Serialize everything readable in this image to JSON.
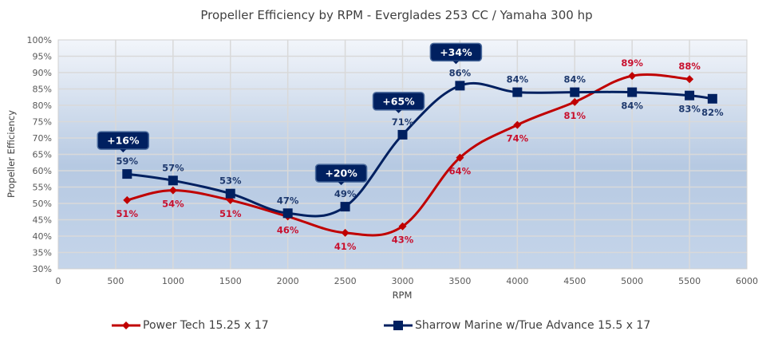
{
  "chart_data": {
    "type": "line",
    "title": "Propeller Efficiency by RPM - Everglades 253 CC / Yamaha 300 hp",
    "xlabel": "RPM",
    "ylabel": "Propeller Efficiency",
    "xlim": [
      0,
      6000
    ],
    "ylim": [
      30,
      100
    ],
    "x_ticks": [
      0,
      500,
      1000,
      1500,
      2000,
      2500,
      3000,
      3500,
      4000,
      4500,
      5000,
      5500,
      6000
    ],
    "x_tick_labels": [
      "0",
      "500",
      "1000",
      "1500",
      "2000",
      "2500",
      "3000",
      "3500",
      "4000",
      "4500",
      "5000",
      "5500",
      "6000"
    ],
    "y_ticks": [
      30,
      35,
      40,
      45,
      50,
      55,
      60,
      65,
      70,
      75,
      80,
      85,
      90,
      95,
      100
    ],
    "y_tick_labels": [
      "30%",
      "35%",
      "40%",
      "45%",
      "50%",
      "55%",
      "60%",
      "65%",
      "70%",
      "75%",
      "80%",
      "85%",
      "90%",
      "95%",
      "100%"
    ],
    "grid": true,
    "legend_position": "bottom",
    "series": [
      {
        "name": "Power Tech 15.25 x 17",
        "color": "#c00000",
        "marker": "diamond",
        "x": [
          600,
          1000,
          1500,
          2000,
          2500,
          3000,
          3500,
          4000,
          4500,
          5000,
          5500
        ],
        "values": [
          51,
          54,
          51,
          46,
          41,
          43,
          64,
          74,
          81,
          89,
          88
        ],
        "labels": [
          "51%",
          "54%",
          "51%",
          "46%",
          "41%",
          "43%",
          "64%",
          "74%",
          "81%",
          "89%",
          "88%"
        ],
        "label_pos": [
          "below",
          "below",
          "below",
          "below",
          "below",
          "below",
          "below",
          "below",
          "below",
          "above",
          "above"
        ]
      },
      {
        "name": "Sharrow Marine w/True Advance 15.5 x 17",
        "color": "#002060",
        "marker": "square",
        "x": [
          600,
          1000,
          1500,
          2000,
          2500,
          3000,
          3500,
          4000,
          4500,
          5000,
          5500,
          5700
        ],
        "values": [
          59,
          57,
          53,
          47,
          49,
          71,
          86,
          84,
          84,
          84,
          83,
          82
        ],
        "labels": [
          "59%",
          "57%",
          "53%",
          "47%",
          "49%",
          "71%",
          "86%",
          "84%",
          "84%",
          "84%",
          "83%",
          "82%"
        ],
        "label_pos": [
          "above",
          "above",
          "above",
          "above",
          "above",
          "above",
          "above",
          "above",
          "above",
          "below",
          "below",
          "below"
        ]
      }
    ],
    "annotations": [
      {
        "text": "+16%",
        "x": 600,
        "y": 59
      },
      {
        "text": "+20%",
        "x": 2500,
        "y": 49
      },
      {
        "text": "+65%",
        "x": 3000,
        "y": 71
      },
      {
        "text": "+34%",
        "x": 3500,
        "y": 86
      }
    ]
  }
}
